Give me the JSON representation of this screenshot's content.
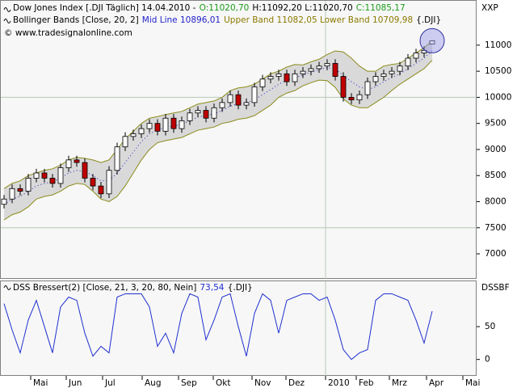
{
  "chart_data": [
    {
      "type": "candlestick",
      "header": {
        "title": "Dow Jones Index [.DJI  Täglich] 14.04.2010 -",
        "open": "O:11020,70",
        "high_low": "H:11092,20 L:11020,70",
        "close": "C:11085,17",
        "indicator": "Bollinger Bands [Close, 20, 2]",
        "mid": "Mid Line 10896,01",
        "bands": "Upper Band 11082,05 Lower Band 10709,98",
        "symbol": "{.DJI}",
        "copyright": "© www.tradesignalonline.com"
      },
      "y_label": "XXP",
      "xlim": [
        0,
        59
      ],
      "vline": 40.3,
      "ylim": [
        6520,
        11850
      ],
      "yticks": [
        7000,
        7500,
        8000,
        8500,
        9000,
        9500,
        10000,
        10500,
        11000
      ],
      "ygrid": [
        7500,
        10000
      ],
      "up_color": "#ffffff",
      "down_color": "#c00000",
      "open": [
        7950,
        8050,
        8250,
        8200,
        8450,
        8550,
        8450,
        8350,
        8650,
        8800,
        8750,
        8450,
        8300,
        8150,
        8600,
        9050,
        9250,
        9300,
        9400,
        9500,
        9350,
        9600,
        9400,
        9550,
        9700,
        9750,
        9600,
        9800,
        9900,
        10050,
        9850,
        9900,
        10200,
        10350,
        10400,
        10450,
        10300,
        10450,
        10500,
        10550,
        10600,
        10650,
        10400,
        10000,
        9950,
        10050,
        10300,
        10400,
        10450,
        10500,
        10600,
        10750,
        10850,
        11020.7
      ],
      "high": [
        8130,
        8330,
        8330,
        8530,
        8630,
        8630,
        8530,
        8730,
        8880,
        8880,
        8830,
        8530,
        8380,
        8680,
        9130,
        9330,
        9380,
        9480,
        9580,
        9580,
        9680,
        9680,
        9630,
        9780,
        9830,
        9830,
        9880,
        9980,
        10130,
        10130,
        9980,
        10280,
        10430,
        10480,
        10530,
        10530,
        10530,
        10580,
        10630,
        10680,
        10730,
        10730,
        10480,
        10080,
        10130,
        10380,
        10480,
        10530,
        10580,
        10680,
        10830,
        10930,
        10980,
        11092.2
      ],
      "low": [
        7870,
        7970,
        8120,
        8120,
        8370,
        8370,
        8270,
        8270,
        8570,
        8670,
        8370,
        8220,
        8070,
        8070,
        8520,
        8970,
        9170,
        9220,
        9320,
        9270,
        9270,
        9320,
        9320,
        9470,
        9620,
        9520,
        9520,
        9720,
        9820,
        9770,
        9770,
        9820,
        10120,
        10270,
        10320,
        10220,
        10220,
        10370,
        10420,
        10470,
        10520,
        10320,
        9920,
        9870,
        9870,
        9970,
        10220,
        10320,
        10370,
        10420,
        10520,
        10670,
        10770,
        11020.7
      ],
      "close": [
        8050,
        8250,
        8200,
        8450,
        8550,
        8450,
        8350,
        8650,
        8800,
        8750,
        8450,
        8300,
        8150,
        8600,
        9050,
        9250,
        9300,
        9400,
        9500,
        9350,
        9600,
        9400,
        9550,
        9700,
        9750,
        9600,
        9800,
        9900,
        10050,
        9850,
        9900,
        10200,
        10350,
        10400,
        10450,
        10300,
        10450,
        10500,
        10550,
        10600,
        10650,
        10400,
        10000,
        9950,
        10050,
        10300,
        10400,
        10450,
        10500,
        10600,
        10750,
        10850,
        10900,
        11085.17
      ],
      "bands": {
        "band_color": "#8b8b1a",
        "fill": "#d9d9d9",
        "mid_color": "#2222cc",
        "upper": [
          8250,
          8350,
          8400,
          8500,
          8550,
          8600,
          8630,
          8700,
          8800,
          8850,
          8830,
          8800,
          8750,
          8800,
          9000,
          9200,
          9350,
          9500,
          9600,
          9630,
          9670,
          9700,
          9730,
          9800,
          9870,
          9900,
          9930,
          10000,
          10130,
          10180,
          10200,
          10250,
          10350,
          10450,
          10500,
          10580,
          10630,
          10620,
          10680,
          10730,
          10820,
          10890,
          10870,
          10750,
          10600,
          10500,
          10500,
          10600,
          10630,
          10650,
          10750,
          10850,
          10950,
          11082.05
        ],
        "mid": [
          7950,
          8050,
          8100,
          8200,
          8300,
          8350,
          8380,
          8450,
          8550,
          8600,
          8580,
          8500,
          8400,
          8400,
          8550,
          8750,
          8950,
          9150,
          9300,
          9380,
          9420,
          9450,
          9480,
          9550,
          9620,
          9650,
          9680,
          9750,
          9830,
          9880,
          9900,
          9950,
          10050,
          10150,
          10250,
          10330,
          10380,
          10420,
          10480,
          10530,
          10570,
          10540,
          10420,
          10300,
          10200,
          10150,
          10200,
          10300,
          10380,
          10450,
          10550,
          10650,
          10750,
          10896.01
        ],
        "lower": [
          7650,
          7750,
          7800,
          7900,
          8050,
          8100,
          8130,
          8200,
          8300,
          8350,
          8330,
          8200,
          8050,
          8000,
          8100,
          8300,
          8550,
          8800,
          9000,
          9130,
          9170,
          9200,
          9230,
          9300,
          9370,
          9400,
          9430,
          9500,
          9530,
          9580,
          9600,
          9650,
          9750,
          9850,
          10000,
          10080,
          10130,
          10220,
          10280,
          10330,
          10320,
          10190,
          9970,
          9850,
          9800,
          9800,
          9900,
          10000,
          10130,
          10250,
          10350,
          10450,
          10550,
          10709.98
        ]
      }
    },
    {
      "type": "line",
      "header": {
        "title": "DSS Bressert(2) [Close, 21, 3, 20, 80, Nein]",
        "last": "73,54",
        "symbol": "{.DJI}"
      },
      "y_label": "DSSBF",
      "xlim": [
        0,
        59
      ],
      "vline": 40.3,
      "xticks": [
        {
          "value": 3.8,
          "label": "Mai"
        },
        {
          "value": 8.2,
          "label": "Jun"
        },
        {
          "value": 12.7,
          "label": "Jul"
        },
        {
          "value": 17.6,
          "label": "Aug"
        },
        {
          "value": 22.1,
          "label": "Sep"
        },
        {
          "value": 26.4,
          "label": "Okt"
        },
        {
          "value": 31.2,
          "label": "Nov"
        },
        {
          "value": 35.4,
          "label": "Dez"
        },
        {
          "value": 40.3,
          "label": "2010"
        },
        {
          "value": 44.1,
          "label": "Feb"
        },
        {
          "value": 48.2,
          "label": "Mrz"
        },
        {
          "value": 52.8,
          "label": "Apr"
        },
        {
          "value": 57.3,
          "label": "Mai"
        }
      ],
      "ylim": [
        -25,
        119
      ],
      "yticks": [
        0,
        50
      ],
      "color": "#1f2fcf",
      "values": [
        85,
        45,
        10,
        60,
        90,
        50,
        10,
        80,
        95,
        90,
        40,
        5,
        20,
        10,
        95,
        100,
        100,
        100,
        80,
        20,
        40,
        10,
        70,
        100,
        95,
        30,
        60,
        95,
        100,
        50,
        5,
        70,
        100,
        90,
        40,
        90,
        95,
        100,
        100,
        90,
        95,
        60,
        15,
        0,
        10,
        15,
        90,
        100,
        100,
        95,
        90,
        60,
        25,
        73.54
      ]
    }
  ]
}
